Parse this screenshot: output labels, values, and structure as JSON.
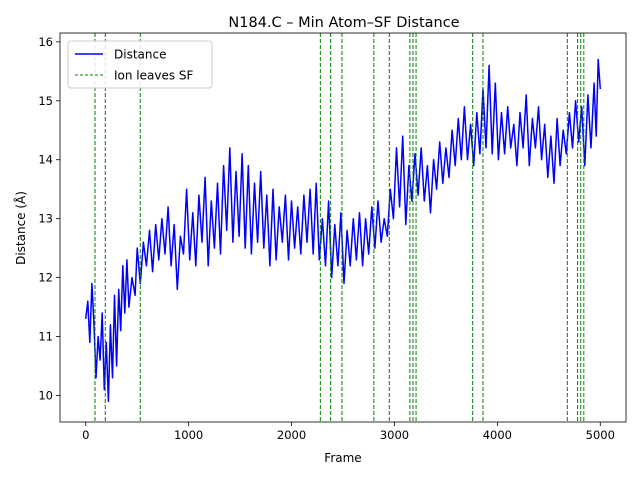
{
  "chart_data": {
    "type": "line",
    "title": "N184.C – Min Atom–SF Distance",
    "xlabel": "Frame",
    "ylabel": "Distance (Å)",
    "xlim": [
      -250,
      5250
    ],
    "ylim": [
      9.55,
      16.15
    ],
    "xticks": [
      0,
      1000,
      2000,
      3000,
      4000,
      5000
    ],
    "yticks": [
      10,
      11,
      12,
      13,
      14,
      15,
      16
    ],
    "grid": false,
    "legend_position": "upper-left",
    "series": [
      {
        "name": "Distance",
        "color": "#0000ff",
        "style": "solid",
        "points": [
          [
            0,
            11.3
          ],
          [
            20,
            11.6
          ],
          [
            40,
            10.9
          ],
          [
            60,
            11.9
          ],
          [
            80,
            11.2
          ],
          [
            100,
            10.3
          ],
          [
            120,
            11.0
          ],
          [
            140,
            10.6
          ],
          [
            160,
            11.4
          ],
          [
            180,
            10.1
          ],
          [
            200,
            10.9
          ],
          [
            220,
            9.9
          ],
          [
            240,
            11.2
          ],
          [
            260,
            10.3
          ],
          [
            280,
            11.7
          ],
          [
            300,
            10.5
          ],
          [
            320,
            11.8
          ],
          [
            340,
            11.1
          ],
          [
            360,
            12.2
          ],
          [
            380,
            11.4
          ],
          [
            400,
            12.3
          ],
          [
            420,
            11.5
          ],
          [
            450,
            12.0
          ],
          [
            480,
            11.7
          ],
          [
            500,
            12.5
          ],
          [
            530,
            11.9
          ],
          [
            560,
            12.6
          ],
          [
            590,
            12.2
          ],
          [
            620,
            12.8
          ],
          [
            650,
            12.1
          ],
          [
            680,
            12.9
          ],
          [
            710,
            12.3
          ],
          [
            740,
            13.0
          ],
          [
            770,
            12.4
          ],
          [
            800,
            13.2
          ],
          [
            830,
            12.2
          ],
          [
            860,
            12.9
          ],
          [
            890,
            11.8
          ],
          [
            920,
            12.7
          ],
          [
            950,
            12.4
          ],
          [
            980,
            13.5
          ],
          [
            1010,
            12.3
          ],
          [
            1040,
            13.1
          ],
          [
            1070,
            12.2
          ],
          [
            1100,
            13.4
          ],
          [
            1130,
            12.6
          ],
          [
            1160,
            13.7
          ],
          [
            1190,
            12.2
          ],
          [
            1220,
            13.3
          ],
          [
            1250,
            12.5
          ],
          [
            1280,
            13.6
          ],
          [
            1310,
            12.4
          ],
          [
            1340,
            13.9
          ],
          [
            1370,
            12.8
          ],
          [
            1400,
            14.2
          ],
          [
            1430,
            12.6
          ],
          [
            1460,
            13.8
          ],
          [
            1490,
            12.7
          ],
          [
            1520,
            14.1
          ],
          [
            1550,
            12.5
          ],
          [
            1580,
            13.9
          ],
          [
            1610,
            12.4
          ],
          [
            1640,
            13.6
          ],
          [
            1670,
            12.6
          ],
          [
            1700,
            13.8
          ],
          [
            1730,
            12.5
          ],
          [
            1760,
            13.4
          ],
          [
            1790,
            12.2
          ],
          [
            1820,
            13.5
          ],
          [
            1850,
            12.3
          ],
          [
            1880,
            13.2
          ],
          [
            1910,
            12.6
          ],
          [
            1940,
            13.4
          ],
          [
            1970,
            12.3
          ],
          [
            2000,
            13.3
          ],
          [
            2030,
            12.5
          ],
          [
            2060,
            13.2
          ],
          [
            2090,
            12.4
          ],
          [
            2120,
            13.4
          ],
          [
            2150,
            12.6
          ],
          [
            2180,
            13.5
          ],
          [
            2210,
            12.4
          ],
          [
            2240,
            13.6
          ],
          [
            2270,
            12.3
          ],
          [
            2300,
            13.0
          ],
          [
            2330,
            12.2
          ],
          [
            2360,
            13.3
          ],
          [
            2390,
            12.0
          ],
          [
            2420,
            12.9
          ],
          [
            2450,
            12.2
          ],
          [
            2480,
            13.1
          ],
          [
            2510,
            11.9
          ],
          [
            2540,
            12.8
          ],
          [
            2570,
            12.2
          ],
          [
            2600,
            13.0
          ],
          [
            2630,
            12.3
          ],
          [
            2660,
            13.1
          ],
          [
            2690,
            12.2
          ],
          [
            2720,
            13.0
          ],
          [
            2750,
            12.4
          ],
          [
            2780,
            13.2
          ],
          [
            2810,
            12.5
          ],
          [
            2840,
            13.3
          ],
          [
            2870,
            12.6
          ],
          [
            2900,
            13.0
          ],
          [
            2930,
            12.7
          ],
          [
            2960,
            13.5
          ],
          [
            2990,
            13.0
          ],
          [
            3020,
            14.2
          ],
          [
            3050,
            13.2
          ],
          [
            3080,
            14.4
          ],
          [
            3110,
            12.9
          ],
          [
            3140,
            13.9
          ],
          [
            3170,
            13.3
          ],
          [
            3200,
            14.1
          ],
          [
            3230,
            13.4
          ],
          [
            3260,
            14.2
          ],
          [
            3290,
            13.3
          ],
          [
            3320,
            13.9
          ],
          [
            3350,
            13.1
          ],
          [
            3380,
            14.0
          ],
          [
            3410,
            13.5
          ],
          [
            3440,
            14.3
          ],
          [
            3470,
            13.6
          ],
          [
            3500,
            14.2
          ],
          [
            3530,
            13.7
          ],
          [
            3560,
            14.5
          ],
          [
            3590,
            13.9
          ],
          [
            3620,
            14.7
          ],
          [
            3650,
            14.0
          ],
          [
            3680,
            14.9
          ],
          [
            3710,
            14.0
          ],
          [
            3740,
            14.6
          ],
          [
            3770,
            13.9
          ],
          [
            3800,
            14.8
          ],
          [
            3830,
            14.1
          ],
          [
            3860,
            15.2
          ],
          [
            3890,
            14.2
          ],
          [
            3920,
            15.6
          ],
          [
            3950,
            14.1
          ],
          [
            3980,
            15.3
          ],
          [
            4010,
            14.0
          ],
          [
            4040,
            14.8
          ],
          [
            4070,
            14.1
          ],
          [
            4100,
            14.9
          ],
          [
            4130,
            14.2
          ],
          [
            4160,
            14.6
          ],
          [
            4190,
            13.9
          ],
          [
            4220,
            14.8
          ],
          [
            4250,
            14.2
          ],
          [
            4280,
            15.1
          ],
          [
            4310,
            13.9
          ],
          [
            4340,
            14.7
          ],
          [
            4370,
            14.2
          ],
          [
            4400,
            14.9
          ],
          [
            4430,
            14.0
          ],
          [
            4460,
            14.6
          ],
          [
            4490,
            13.7
          ],
          [
            4520,
            14.4
          ],
          [
            4550,
            13.6
          ],
          [
            4580,
            14.7
          ],
          [
            4610,
            13.9
          ],
          [
            4640,
            14.5
          ],
          [
            4670,
            14.1
          ],
          [
            4700,
            14.8
          ],
          [
            4730,
            14.2
          ],
          [
            4760,
            15.0
          ],
          [
            4790,
            14.3
          ],
          [
            4820,
            14.9
          ],
          [
            4850,
            13.9
          ],
          [
            4880,
            15.1
          ],
          [
            4910,
            14.2
          ],
          [
            4940,
            15.3
          ],
          [
            4960,
            14.4
          ],
          [
            4980,
            15.7
          ],
          [
            5000,
            15.2
          ]
        ]
      },
      {
        "name": "Ion leaves SF",
        "color": "#008000",
        "style": "dashed",
        "vlines": [
          90,
          190,
          530,
          2280,
          2380,
          2490,
          2800,
          2950,
          3150,
          3180,
          3210,
          3760,
          3860,
          4680,
          4780,
          4810,
          4840
        ]
      }
    ]
  }
}
